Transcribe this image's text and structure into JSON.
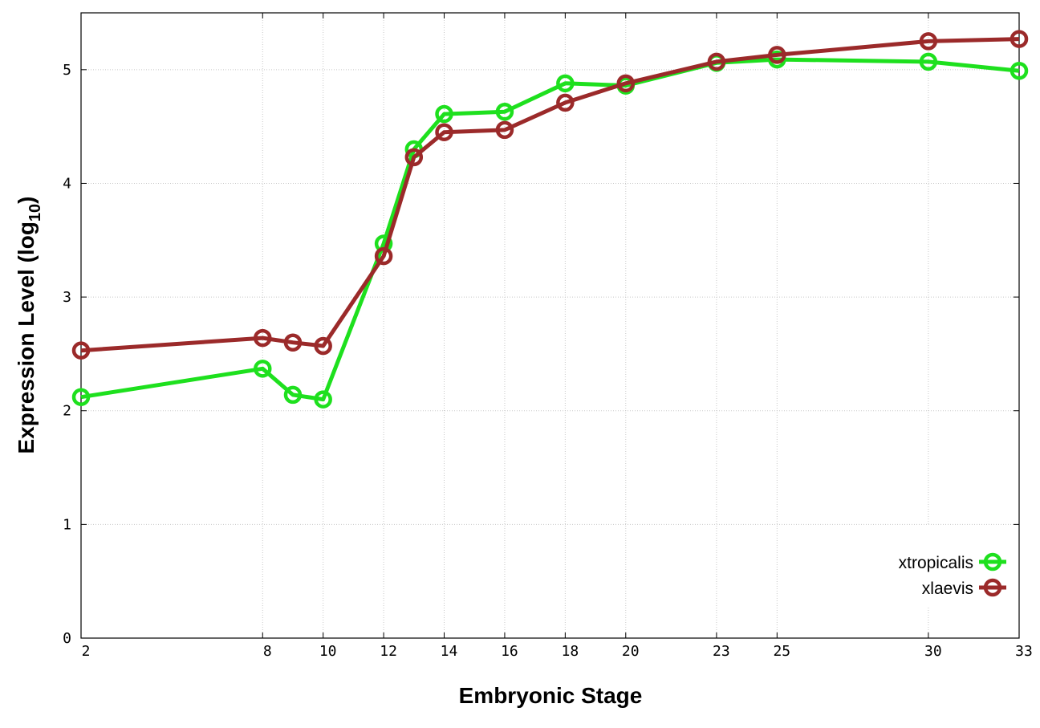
{
  "chart_data": {
    "type": "line",
    "title": "",
    "xlabel": "Embryonic Stage",
    "ylabel": {
      "prefix": "Expression Level (log",
      "subscript": "10",
      "suffix": ")"
    },
    "x_ticks": [
      "2",
      "8",
      "10",
      "12",
      "14",
      "16",
      "18",
      "20",
      "23",
      "25",
      "30",
      "33"
    ],
    "x": [
      2,
      8,
      9,
      10,
      12,
      13,
      14,
      16,
      18,
      20,
      23,
      25,
      30,
      33
    ],
    "ylim": [
      0,
      5.5
    ],
    "y_ticks": [
      "0",
      "1",
      "2",
      "3",
      "4",
      "5"
    ],
    "grid": true,
    "legend_position": "bottom-right",
    "series": [
      {
        "name": "xtropicalis",
        "color": "#1ee01e",
        "values": [
          2.12,
          2.37,
          2.14,
          2.1,
          3.47,
          4.3,
          4.61,
          4.63,
          4.88,
          4.86,
          5.06,
          5.09,
          5.07,
          4.99
        ]
      },
      {
        "name": "xlaevis",
        "color": "#9b2a2a",
        "values": [
          2.53,
          2.64,
          2.6,
          2.57,
          3.36,
          4.23,
          4.45,
          4.47,
          4.71,
          4.88,
          5.07,
          5.13,
          5.25,
          5.27
        ]
      }
    ]
  }
}
